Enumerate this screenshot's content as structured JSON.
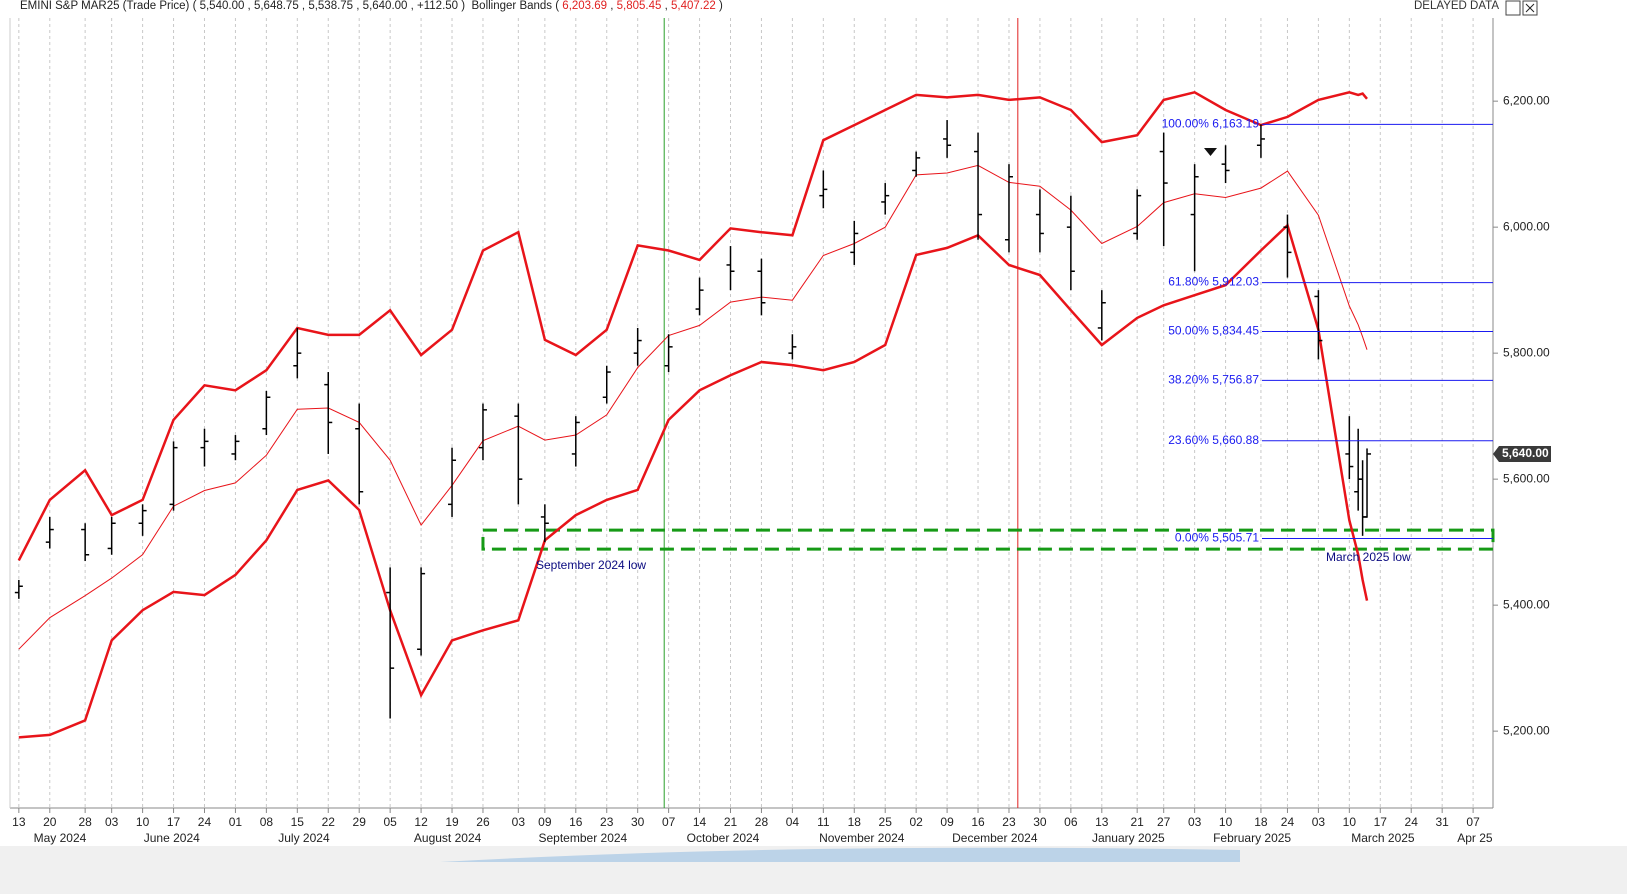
{
  "header": {
    "symbol": "EMINI S&P MAR25 (Trade Price)",
    "ohlc": [
      "5,540.00",
      "5,648.75",
      "5,538.75",
      "5,640.00"
    ],
    "change": "+112.50",
    "study": "Bollinger Bands",
    "study_values": [
      "6,203.69",
      "5,805.45",
      "5,407.22"
    ],
    "status": "DELAYED DATA"
  },
  "chart_data": {
    "type": "ohlc",
    "x": [
      0,
      7,
      15,
      21,
      28,
      35,
      42,
      49,
      56,
      63,
      70,
      77,
      84,
      91,
      98,
      105,
      113,
      119,
      126,
      133,
      140,
      147,
      154,
      161,
      168,
      175,
      182,
      189,
      196,
      203,
      210,
      217,
      224,
      231,
      238,
      245,
      253,
      259,
      266,
      273,
      281,
      287,
      294,
      301,
      303,
      304,
      305
    ],
    "open": [
      5420,
      5500,
      5520,
      5490,
      5530,
      5560,
      5650,
      5640,
      5680,
      5780,
      5750,
      5680,
      5420,
      5330,
      5560,
      5650,
      5700,
      5540,
      5640,
      5730,
      5800,
      5780,
      5870,
      5940,
      5930,
      5800,
      6050,
      5960,
      6040,
      6090,
      6140,
      6120,
      5980,
      6020,
      6000,
      5840,
      5990,
      6120,
      6020,
      6100,
      6130,
      6000,
      5890,
      5640,
      5580,
      5600,
      5540
    ],
    "high": [
      5440,
      5540,
      5530,
      5540,
      5560,
      5660,
      5680,
      5670,
      5740,
      5840,
      5770,
      5720,
      5460,
      5460,
      5650,
      5720,
      5720,
      5560,
      5700,
      5780,
      5840,
      5830,
      5920,
      5970,
      5950,
      5830,
      6090,
      6010,
      6070,
      6120,
      6170,
      6150,
      6100,
      6060,
      6050,
      5900,
      6060,
      6150,
      6100,
      6130,
      6163,
      6020,
      5900,
      5700,
      5680,
      5630,
      5648.75
    ],
    "low": [
      5410,
      5490,
      5470,
      5480,
      5510,
      5550,
      5620,
      5630,
      5670,
      5760,
      5640,
      5560,
      5220,
      5320,
      5540,
      5630,
      5560,
      5500,
      5620,
      5720,
      5780,
      5770,
      5860,
      5900,
      5860,
      5790,
      6030,
      5940,
      6020,
      6080,
      6110,
      5980,
      5960,
      5960,
      5900,
      5820,
      5980,
      5970,
      5930,
      6070,
      6110,
      5920,
      5790,
      5600,
      5550,
      5510,
      5538.75
    ],
    "close": [
      5430,
      5520,
      5480,
      5530,
      5550,
      5650,
      5660,
      5660,
      5730,
      5800,
      5690,
      5580,
      5300,
      5450,
      5630,
      5710,
      5600,
      5530,
      5690,
      5770,
      5820,
      5810,
      5900,
      5930,
      5880,
      5810,
      6060,
      5990,
      6050,
      6110,
      6130,
      6020,
      6080,
      5990,
      5930,
      5880,
      6050,
      6070,
      6080,
      6090,
      6140,
      5960,
      5820,
      5620,
      5600,
      5540,
      5640
    ],
    "bar_color": "#000000",
    "bands": [
      {
        "name": "upper",
        "color": "#e8141a",
        "values": [
          5471,
          5567,
          5614,
          5543,
          5567,
          5694,
          5749,
          5741,
          5773,
          5840,
          5829,
          5829,
          5868,
          5797,
          5837,
          5963,
          5992,
          5821,
          5797,
          5837,
          5971,
          5963,
          5948,
          5998,
          5992,
          5987,
          6138,
          6162,
          6186,
          6210,
          6206,
          6210,
          6202,
          6206,
          6186,
          6135,
          6146,
          6202,
          6214,
          6186,
          6162,
          6175,
          6202,
          6214,
          6210,
          6212,
          6203.69
        ]
      },
      {
        "name": "middle",
        "color": "#e8141a",
        "values": [
          5330,
          5380,
          5415,
          5443,
          5480,
          5557,
          5582,
          5594,
          5638,
          5711,
          5713,
          5690,
          5630,
          5527,
          5590,
          5661,
          5684,
          5662,
          5670,
          5702,
          5777,
          5828,
          5844,
          5881,
          5889,
          5884,
          5955,
          5974,
          6000,
          6083,
          6086,
          6098,
          6071,
          6065,
          6027,
          5974,
          6001,
          6039,
          6053,
          6047,
          6062,
          6089,
          6019,
          5875,
          5845,
          5826,
          5805.45
        ]
      },
      {
        "name": "lower",
        "color": "#e8141a",
        "values": [
          5190,
          5194,
          5217,
          5344,
          5392,
          5421,
          5416,
          5448,
          5503,
          5583,
          5598,
          5551,
          5392,
          5257,
          5344,
          5360,
          5376,
          5503,
          5543,
          5567,
          5583,
          5694,
          5741,
          5765,
          5786,
          5781,
          5773,
          5786,
          5813,
          5956,
          5967,
          5987,
          5940,
          5924,
          5868,
          5813,
          5856,
          5876,
          5892,
          5908,
          5963,
          6003,
          5837,
          5535,
          5480,
          5440,
          5407.22
        ]
      }
    ],
    "xlim": [
      -2,
      333.5
    ],
    "xticks": [
      {
        "value": 0,
        "label": "13"
      },
      {
        "value": 7,
        "label": "20"
      },
      {
        "value": 15,
        "label": "28"
      },
      {
        "value": 21,
        "label": "03"
      },
      {
        "value": 28,
        "label": "10"
      },
      {
        "value": 35,
        "label": "17"
      },
      {
        "value": 42,
        "label": "24"
      },
      {
        "value": 49,
        "label": "01"
      },
      {
        "value": 56,
        "label": "08"
      },
      {
        "value": 63,
        "label": "15"
      },
      {
        "value": 70,
        "label": "22"
      },
      {
        "value": 77,
        "label": "29"
      },
      {
        "value": 84,
        "label": "05"
      },
      {
        "value": 91,
        "label": "12"
      },
      {
        "value": 98,
        "label": "19"
      },
      {
        "value": 105,
        "label": "26"
      },
      {
        "value": 113,
        "label": "03"
      },
      {
        "value": 119,
        "label": "09"
      },
      {
        "value": 126,
        "label": "16"
      },
      {
        "value": 133,
        "label": "23"
      },
      {
        "value": 140,
        "label": "30"
      },
      {
        "value": 147,
        "label": "07"
      },
      {
        "value": 154,
        "label": "14"
      },
      {
        "value": 161,
        "label": "21"
      },
      {
        "value": 168,
        "label": "28"
      },
      {
        "value": 175,
        "label": "04"
      },
      {
        "value": 182,
        "label": "11"
      },
      {
        "value": 189,
        "label": "18"
      },
      {
        "value": 196,
        "label": "25"
      },
      {
        "value": 203,
        "label": "02"
      },
      {
        "value": 210,
        "label": "09"
      },
      {
        "value": 217,
        "label": "16"
      },
      {
        "value": 224,
        "label": "23"
      },
      {
        "value": 231,
        "label": "30"
      },
      {
        "value": 238,
        "label": "06"
      },
      {
        "value": 245,
        "label": "13"
      },
      {
        "value": 253,
        "label": "21"
      },
      {
        "value": 259,
        "label": "27"
      },
      {
        "value": 266,
        "label": "03"
      },
      {
        "value": 273,
        "label": "10"
      },
      {
        "value": 281,
        "label": "18"
      },
      {
        "value": 287,
        "label": "24"
      },
      {
        "value": 294,
        "label": "03"
      },
      {
        "value": 301,
        "label": "10"
      },
      {
        "value": 308,
        "label": "17"
      },
      {
        "value": 315,
        "label": "24"
      },
      {
        "value": 322,
        "label": "31"
      },
      {
        "value": 329,
        "label": "07"
      }
    ],
    "month_labels": [
      {
        "value": 9.3,
        "label": "May 2024"
      },
      {
        "value": 34.6,
        "label": "June 2024"
      },
      {
        "value": 64.5,
        "label": "July 2024"
      },
      {
        "value": 97,
        "label": "August 2024"
      },
      {
        "value": 127.6,
        "label": "September 2024"
      },
      {
        "value": 159.3,
        "label": "October 2024"
      },
      {
        "value": 190.7,
        "label": "November 2024"
      },
      {
        "value": 220.8,
        "label": "December 2024"
      },
      {
        "value": 251,
        "label": "January 2025"
      },
      {
        "value": 279,
        "label": "February 2025"
      },
      {
        "value": 308.6,
        "label": "March 2025"
      },
      {
        "value": 329.4,
        "label": "Apr 25"
      }
    ],
    "ylim": [
      5078,
      6332
    ],
    "yticks": [
      {
        "value": 5200,
        "label": "5,200.00"
      },
      {
        "value": 5400,
        "label": "5,400.00"
      },
      {
        "value": 5600,
        "label": "5,600.00"
      },
      {
        "value": 5800,
        "label": "5,800.00"
      },
      {
        "value": 6000,
        "label": "6,000.00"
      },
      {
        "value": 6200,
        "label": "6,200.00"
      }
    ],
    "last_price": {
      "value": 5640,
      "label": "5,640.00"
    },
    "fib_levels": [
      {
        "value": 6163.19,
        "label": "100.00% 6,163.19"
      },
      {
        "value": 5912.03,
        "label": "61.80% 5,912.03"
      },
      {
        "value": 5834.45,
        "label": "50.00% 5,834.45"
      },
      {
        "value": 5756.87,
        "label": "38.20% 5,756.87"
      },
      {
        "value": 5660.88,
        "label": "23.60% 5,660.88"
      },
      {
        "value": 5505.71,
        "label": "0.00% 5,505.71"
      }
    ],
    "fib_color": "#1a1af0",
    "zone": {
      "x": 105,
      "top": 5519,
      "bottom": 5489,
      "color": "#169a16"
    },
    "vlines": [
      {
        "x": 146,
        "color": "#2aa02a"
      },
      {
        "x": 226,
        "color": "#e02020"
      }
    ],
    "annotations": [
      "September 2024 low",
      "March 2025 low"
    ],
    "grid": true
  }
}
